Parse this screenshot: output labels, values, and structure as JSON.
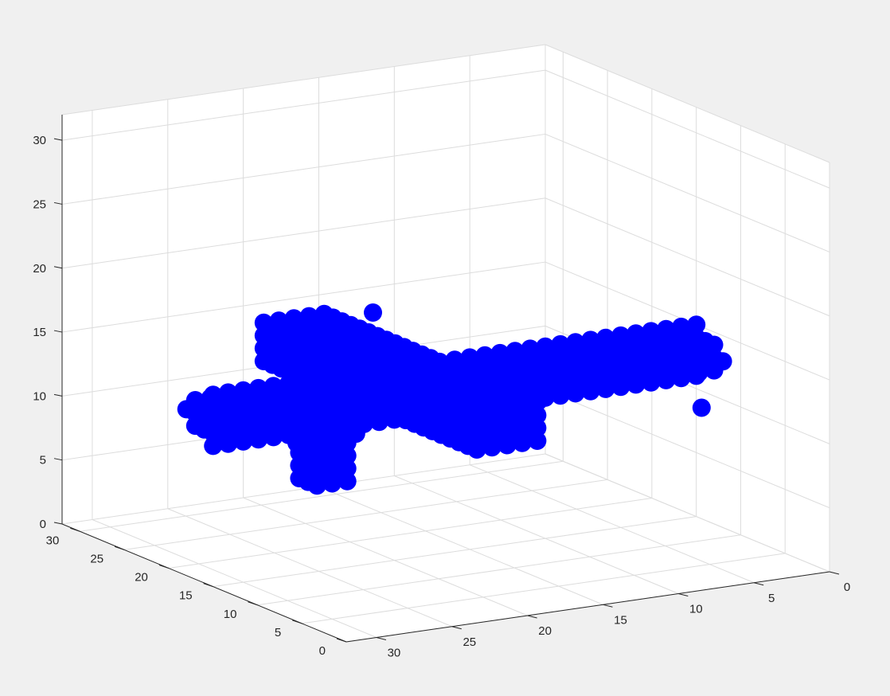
{
  "figure": {
    "background": "#f0f0f0",
    "axes_background": "#ffffff"
  },
  "chart_data": {
    "type": "scatter",
    "title": "",
    "xlabel": "",
    "ylabel": "",
    "zlabel": "",
    "projection": "3d",
    "grid": true,
    "box": true,
    "xlim": [
      0,
      32
    ],
    "ylim": [
      0,
      32
    ],
    "zlim": [
      0,
      32
    ],
    "xticks": [
      0,
      5,
      10,
      15,
      20,
      25,
      30
    ],
    "yticks": [
      0,
      5,
      10,
      15,
      20,
      25,
      30
    ],
    "zticks": [
      0,
      5,
      10,
      15,
      20,
      25,
      30
    ],
    "xtick_labels": [
      "0",
      "5",
      "10",
      "15",
      "20",
      "25",
      "30"
    ],
    "ytick_labels": [
      "0",
      "5",
      "10",
      "15",
      "20",
      "25",
      "30"
    ],
    "ztick_labels": [
      "0",
      "5",
      "10",
      "15",
      "20",
      "25",
      "30"
    ],
    "marker": "filled-circle",
    "marker_color": "#0000ff",
    "grid_color": "#dcdcdc",
    "axis_color": "#262626",
    "series": [
      {
        "values_note": "",
        "points": []
      }
    ]
  }
}
